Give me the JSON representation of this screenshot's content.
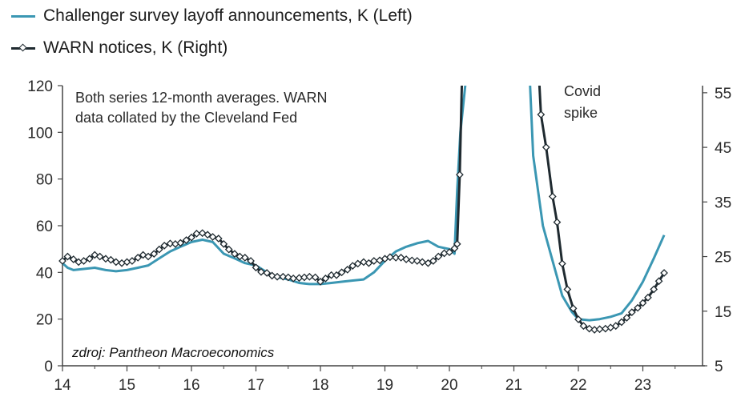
{
  "legend": {
    "left_label": "Challenger survey layoff announcements, K (Left)",
    "right_label": "WARN notices, K (Right)"
  },
  "notes": {
    "line1": "Both series 12-month averages. WARN",
    "line2": "data collated by the Cleveland Fed",
    "covid1": "Covid",
    "covid2": "spike",
    "source": "zdroj: Pantheon Macroeconomics"
  },
  "colors": {
    "challenger": "#3b97b3",
    "warn": "#1f2a30",
    "marker_fill": "#ffffff"
  },
  "chart_data": {
    "type": "line",
    "title": "",
    "x_ticks": [
      "14",
      "15",
      "16",
      "17",
      "18",
      "19",
      "20",
      "21",
      "22",
      "23"
    ],
    "y_left": {
      "ticks": [
        "120",
        "100",
        "80",
        "60",
        "40",
        "20",
        "0"
      ],
      "ylim": [
        0,
        120
      ]
    },
    "y_right": {
      "ticks": [
        "55",
        "45",
        "35",
        "25",
        "15",
        "5"
      ],
      "ylim": [
        5,
        56.3
      ]
    },
    "series": [
      {
        "name": "Challenger survey layoff announcements, K (Left)",
        "axis": "left",
        "points": [
          [
            2014.0,
            44
          ],
          [
            2014.08,
            42
          ],
          [
            2014.17,
            41
          ],
          [
            2014.33,
            41.5
          ],
          [
            2014.5,
            42
          ],
          [
            2014.67,
            41
          ],
          [
            2014.83,
            40.5
          ],
          [
            2015.0,
            41
          ],
          [
            2015.17,
            42
          ],
          [
            2015.33,
            43
          ],
          [
            2015.5,
            46
          ],
          [
            2015.67,
            49
          ],
          [
            2015.83,
            51
          ],
          [
            2016.0,
            53
          ],
          [
            2016.17,
            54
          ],
          [
            2016.33,
            53
          ],
          [
            2016.5,
            48
          ],
          [
            2016.67,
            46
          ],
          [
            2016.83,
            44
          ],
          [
            2017.0,
            43
          ],
          [
            2017.17,
            40
          ],
          [
            2017.33,
            38
          ],
          [
            2017.5,
            37
          ],
          [
            2017.67,
            35.5
          ],
          [
            2017.83,
            35
          ],
          [
            2018.0,
            35
          ],
          [
            2018.17,
            35.5
          ],
          [
            2018.33,
            36
          ],
          [
            2018.5,
            36.5
          ],
          [
            2018.67,
            37
          ],
          [
            2018.83,
            40
          ],
          [
            2019.0,
            45
          ],
          [
            2019.17,
            49
          ],
          [
            2019.33,
            51
          ],
          [
            2019.5,
            52.5
          ],
          [
            2019.67,
            53.5
          ],
          [
            2019.83,
            51
          ],
          [
            2020.0,
            50
          ],
          [
            2020.08,
            48
          ],
          [
            2020.12,
            75
          ],
          [
            2020.17,
            100
          ],
          [
            2020.25,
            121
          ],
          [
            21.25,
            121
          ],
          [
            2021.3,
            90
          ],
          [
            2021.45,
            60
          ],
          [
            2021.6,
            45
          ],
          [
            2021.75,
            30
          ],
          [
            2021.9,
            23
          ],
          [
            2022.0,
            20
          ],
          [
            2022.17,
            19.5
          ],
          [
            2022.33,
            20
          ],
          [
            2022.5,
            21
          ],
          [
            2022.67,
            22.5
          ],
          [
            2022.83,
            28
          ],
          [
            2023.0,
            36
          ],
          [
            2023.17,
            46
          ],
          [
            2023.33,
            56
          ]
        ]
      },
      {
        "name": "WARN notices, K (Right)",
        "axis": "right",
        "points": [
          [
            2014.0,
            24.2
          ],
          [
            2014.08,
            25
          ],
          [
            2014.17,
            24.5
          ],
          [
            2014.25,
            24
          ],
          [
            2014.33,
            24.2
          ],
          [
            2014.42,
            24.6
          ],
          [
            2014.5,
            25.3
          ],
          [
            2014.58,
            25
          ],
          [
            2014.67,
            24.6
          ],
          [
            2014.75,
            24.4
          ],
          [
            2014.83,
            24
          ],
          [
            2014.92,
            23.8
          ],
          [
            2015.0,
            24
          ],
          [
            2015.08,
            24.2
          ],
          [
            2015.17,
            24.8
          ],
          [
            2015.25,
            25.3
          ],
          [
            2015.33,
            25
          ],
          [
            2015.42,
            25.5
          ],
          [
            2015.5,
            26.3
          ],
          [
            2015.58,
            27
          ],
          [
            2015.67,
            27.4
          ],
          [
            2015.75,
            27.3
          ],
          [
            2015.83,
            27.5
          ],
          [
            2015.92,
            28
          ],
          [
            2016.0,
            28.5
          ],
          [
            2016.08,
            29.2
          ],
          [
            2016.17,
            29.3
          ],
          [
            2016.25,
            29
          ],
          [
            2016.33,
            28.6
          ],
          [
            2016.42,
            28.3
          ],
          [
            2016.5,
            27.3
          ],
          [
            2016.58,
            26.3
          ],
          [
            2016.67,
            25.5
          ],
          [
            2016.75,
            25
          ],
          [
            2016.83,
            24.8
          ],
          [
            2016.92,
            24.2
          ],
          [
            2017.0,
            23
          ],
          [
            2017.08,
            22.2
          ],
          [
            2017.17,
            22
          ],
          [
            2017.25,
            21.5
          ],
          [
            2017.33,
            21.3
          ],
          [
            2017.42,
            21.3
          ],
          [
            2017.5,
            21.2
          ],
          [
            2017.58,
            21
          ],
          [
            2017.67,
            21.1
          ],
          [
            2017.75,
            21.2
          ],
          [
            2017.83,
            21.3
          ],
          [
            2017.92,
            21.2
          ],
          [
            2018.0,
            20.4
          ],
          [
            2018.08,
            21
          ],
          [
            2018.17,
            21.6
          ],
          [
            2018.25,
            21.6
          ],
          [
            2018.33,
            22.1
          ],
          [
            2018.42,
            22.6
          ],
          [
            2018.5,
            23.3
          ],
          [
            2018.58,
            23.7
          ],
          [
            2018.67,
            24
          ],
          [
            2018.75,
            23.8
          ],
          [
            2018.83,
            24.2
          ],
          [
            2018.92,
            24.3
          ],
          [
            2019.0,
            24.6
          ],
          [
            2019.08,
            24.9
          ],
          [
            2019.17,
            24.8
          ],
          [
            2019.25,
            24.8
          ],
          [
            2019.33,
            24.5
          ],
          [
            2019.42,
            24.3
          ],
          [
            2019.5,
            24.2
          ],
          [
            2019.58,
            24
          ],
          [
            2019.67,
            23.8
          ],
          [
            2019.75,
            24.2
          ],
          [
            2019.83,
            25
          ],
          [
            2019.92,
            25.6
          ],
          [
            2020.0,
            25.8
          ],
          [
            2020.08,
            26.5
          ],
          [
            2020.12,
            27.3
          ],
          [
            2020.16,
            40
          ],
          [
            2020.2,
            60
          ],
          [
            2021.38,
            60
          ],
          [
            2021.42,
            51
          ],
          [
            2021.5,
            45
          ],
          [
            2021.6,
            36
          ],
          [
            2021.67,
            31.3
          ],
          [
            2021.75,
            23.7
          ],
          [
            2021.83,
            19
          ],
          [
            2021.92,
            15.5
          ],
          [
            2022.0,
            13.5
          ],
          [
            2022.08,
            12.3
          ],
          [
            2022.17,
            11.8
          ],
          [
            2022.25,
            11.6
          ],
          [
            2022.33,
            11.7
          ],
          [
            2022.42,
            11.8
          ],
          [
            2022.5,
            12
          ],
          [
            2022.58,
            12.3
          ],
          [
            2022.67,
            13
          ],
          [
            2022.75,
            13.8
          ],
          [
            2022.83,
            14.8
          ],
          [
            2022.92,
            15.6
          ],
          [
            2023.0,
            16.5
          ],
          [
            2023.08,
            17.5
          ],
          [
            2023.17,
            19
          ],
          [
            2023.25,
            20.5
          ],
          [
            2023.33,
            22
          ]
        ]
      }
    ]
  }
}
